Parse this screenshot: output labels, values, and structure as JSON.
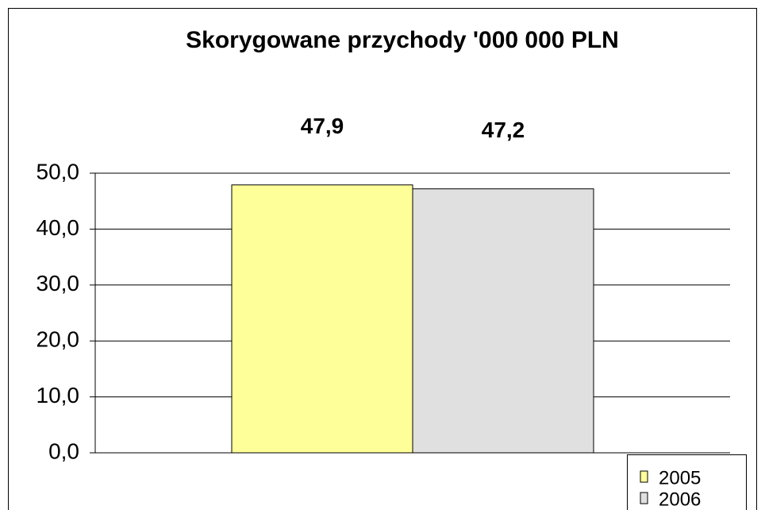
{
  "chart_data": {
    "type": "bar",
    "title": "Skorygowane przychody '000 000 PLN",
    "categories": [
      null
    ],
    "series": [
      {
        "name": "2005",
        "color": "#ffff99",
        "values": [
          47.9
        ],
        "value_labels": [
          "47,9"
        ]
      },
      {
        "name": "2006",
        "color": "#e0e0e0",
        "values": [
          47.2
        ],
        "value_labels": [
          "47,2"
        ]
      }
    ],
    "ylim": [
      0,
      50
    ],
    "yticks": [
      {
        "value": 0,
        "label": "0,0"
      },
      {
        "value": 10,
        "label": "10,0"
      },
      {
        "value": 20,
        "label": "20,0"
      },
      {
        "value": 30,
        "label": "30,0"
      },
      {
        "value": 40,
        "label": "40,0"
      },
      {
        "value": 50,
        "label": "50,0"
      }
    ],
    "grid": true,
    "legend": "bottom-right"
  }
}
